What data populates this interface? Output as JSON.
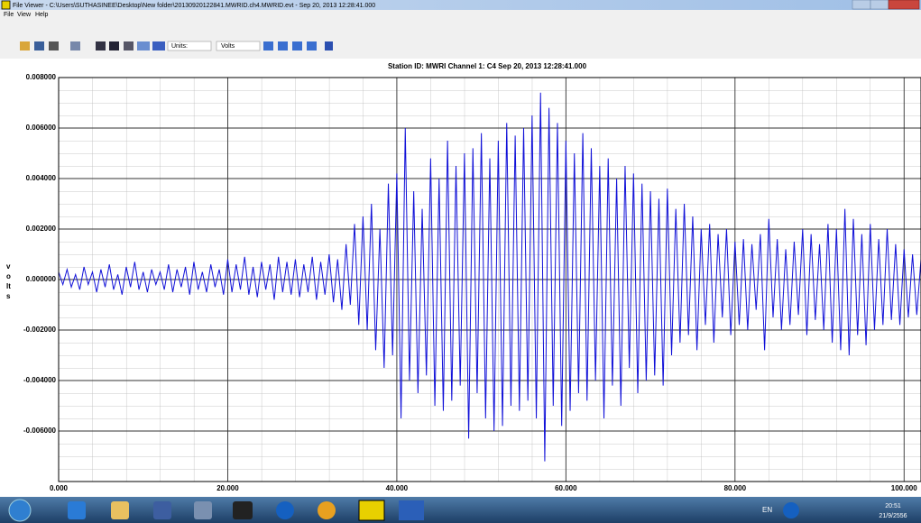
{
  "window": {
    "title": "File Viewer - C:\\Users\\SUTHASINEE\\Desktop\\New folder\\20130920122841.MWRID.ch4.MWRID.evt - Sep 20, 2013  12:28:41.000"
  },
  "menu": [
    "File",
    "View",
    "Help"
  ],
  "toolbar": {
    "units_label": "Units:",
    "units_value": "Volts"
  },
  "chart_data": {
    "type": "line",
    "title": "Station ID: MWRI  Channel 1: C4  Sep 20, 2013  12:28:41.000",
    "y_label": "volts",
    "color": "#1010d8",
    "grid": true,
    "xlim": [
      0,
      102
    ],
    "ylim": [
      -0.008,
      0.008
    ],
    "xticks": [
      {
        "value": 0,
        "label": "0.000"
      },
      {
        "value": 20,
        "label": "20.000"
      },
      {
        "value": 40,
        "label": "40.000"
      },
      {
        "value": 60,
        "label": "60.000"
      },
      {
        "value": 80,
        "label": "80.000"
      },
      {
        "value": 100,
        "label": "100.000"
      }
    ],
    "yticks": [
      {
        "value": 0.008,
        "label": "0.008000"
      },
      {
        "value": 0.006,
        "label": "0.006000"
      },
      {
        "value": 0.004,
        "label": "0.004000"
      },
      {
        "value": 0.002,
        "label": "0.002000"
      },
      {
        "value": 0,
        "label": "0.000000"
      },
      {
        "value": -0.002,
        "label": "-0.002000"
      },
      {
        "value": -0.004,
        "label": "-0.004000"
      },
      {
        "value": -0.006,
        "label": "-0.006000"
      }
    ],
    "x": [
      0,
      0.5,
      1,
      1.5,
      2,
      2.5,
      3,
      3.5,
      4,
      4.5,
      5,
      5.5,
      6,
      6.5,
      7,
      7.5,
      8,
      8.5,
      9,
      9.5,
      10,
      10.5,
      11,
      11.5,
      12,
      12.5,
      13,
      13.5,
      14,
      14.5,
      15,
      15.5,
      16,
      16.5,
      17,
      17.5,
      18,
      18.5,
      19,
      19.5,
      20,
      20.5,
      21,
      21.5,
      22,
      22.5,
      23,
      23.5,
      24,
      24.5,
      25,
      25.5,
      26,
      26.5,
      27,
      27.5,
      28,
      28.5,
      29,
      29.5,
      30,
      30.5,
      31,
      31.5,
      32,
      32.5,
      33,
      33.5,
      34,
      34.5,
      35,
      35.5,
      36,
      36.5,
      37,
      37.5,
      38,
      38.5,
      39,
      39.5,
      40,
      40.5,
      41,
      41.5,
      42,
      42.5,
      43,
      43.5,
      44,
      44.5,
      45,
      45.5,
      46,
      46.5,
      47,
      47.5,
      48,
      48.5,
      49,
      49.5,
      50,
      50.5,
      51,
      51.5,
      52,
      52.5,
      53,
      53.5,
      54,
      54.5,
      55,
      55.5,
      56,
      56.5,
      57,
      57.5,
      58,
      58.5,
      59,
      59.5,
      60,
      60.5,
      61,
      61.5,
      62,
      62.5,
      63,
      63.5,
      64,
      64.5,
      65,
      65.5,
      66,
      66.5,
      67,
      67.5,
      68,
      68.5,
      69,
      69.5,
      70,
      70.5,
      71,
      71.5,
      72,
      72.5,
      73,
      73.5,
      74,
      74.5,
      75,
      75.5,
      76,
      76.5,
      77,
      77.5,
      78,
      78.5,
      79,
      79.5,
      80,
      80.5,
      81,
      81.5,
      82,
      82.5,
      83,
      83.5,
      84,
      84.5,
      85,
      85.5,
      86,
      86.5,
      87,
      87.5,
      88,
      88.5,
      89,
      89.5,
      90,
      90.5,
      91,
      91.5,
      92,
      92.5,
      93,
      93.5,
      94,
      94.5,
      95,
      95.5,
      96,
      96.5,
      97,
      97.5,
      98,
      98.5,
      99,
      99.5,
      100,
      100.5,
      101,
      101.5,
      102
    ],
    "values": [
      0.0003,
      -0.0002,
      0.0004,
      -0.0003,
      0.0002,
      -0.0004,
      0.0005,
      -0.0002,
      0.0003,
      -0.0005,
      0.0004,
      -0.0003,
      0.0006,
      -0.0004,
      0.0002,
      -0.0006,
      0.0005,
      -0.0003,
      0.0007,
      -0.0004,
      0.0003,
      -0.0005,
      0.0004,
      -0.0002,
      0.0003,
      -0.0004,
      0.0006,
      -0.0005,
      0.0004,
      -0.0003,
      0.0005,
      -0.0006,
      0.0007,
      -0.0004,
      0.0003,
      -0.0005,
      0.0006,
      -0.0003,
      0.0004,
      -0.0006,
      0.0008,
      -0.0005,
      0.0006,
      -0.0004,
      0.0009,
      -0.0006,
      0.0005,
      -0.0007,
      0.0007,
      -0.0004,
      0.0006,
      -0.0008,
      0.0009,
      -0.0005,
      0.0007,
      -0.0006,
      0.0008,
      -0.0007,
      0.0006,
      -0.0005,
      0.0009,
      -0.0008,
      0.0007,
      -0.0006,
      0.001,
      -0.0009,
      0.0008,
      -0.0012,
      0.0014,
      -0.001,
      0.0022,
      -0.0018,
      0.0025,
      -0.002,
      0.003,
      -0.0028,
      0.002,
      -0.0035,
      0.0038,
      -0.003,
      0.0042,
      -0.0055,
      0.006,
      -0.004,
      0.0035,
      -0.0045,
      0.0028,
      -0.0038,
      0.0048,
      -0.005,
      0.004,
      -0.0052,
      0.0055,
      -0.0048,
      0.0045,
      -0.0042,
      0.005,
      -0.0063,
      0.0052,
      -0.0045,
      0.0058,
      -0.0055,
      0.0048,
      -0.006,
      0.0055,
      -0.0058,
      0.0062,
      -0.005,
      0.0057,
      -0.0052,
      0.006,
      -0.0048,
      0.0065,
      -0.0055,
      0.0074,
      -0.0072,
      0.0068,
      -0.005,
      0.0062,
      -0.0058,
      0.0055,
      -0.0052,
      0.005,
      -0.0045,
      0.0058,
      -0.0048,
      0.0052,
      -0.004,
      0.0045,
      -0.0055,
      0.0048,
      -0.0042,
      0.004,
      -0.005,
      0.0045,
      -0.0035,
      0.0042,
      -0.0045,
      0.0038,
      -0.004,
      0.0035,
      -0.0038,
      0.0032,
      -0.0042,
      0.0036,
      -0.003,
      0.0028,
      -0.0025,
      0.003,
      -0.0022,
      0.0025,
      -0.0028,
      0.002,
      -0.0018,
      0.0022,
      -0.0025,
      0.0018,
      -0.0015,
      0.002,
      -0.0022,
      0.0015,
      -0.0018,
      0.0016,
      -0.002,
      0.0014,
      -0.0012,
      0.0018,
      -0.0028,
      0.0024,
      -0.0015,
      0.0016,
      -0.002,
      0.0012,
      -0.0018,
      0.0015,
      -0.0014,
      0.002,
      -0.0022,
      0.0018,
      -0.0016,
      0.0014,
      -0.002,
      0.0022,
      -0.0025,
      0.002,
      -0.0028,
      0.0028,
      -0.003,
      0.0024,
      -0.0022,
      0.0018,
      -0.0026,
      0.0022,
      -0.002,
      0.0016,
      -0.0018,
      0.002,
      -0.0016,
      0.0014,
      -0.0018,
      0.0012,
      -0.0015,
      0.001,
      -0.0014,
      0.0008
    ]
  },
  "taskbar": {
    "language": "EN",
    "time": "20:51",
    "date": "21/9/2556"
  }
}
